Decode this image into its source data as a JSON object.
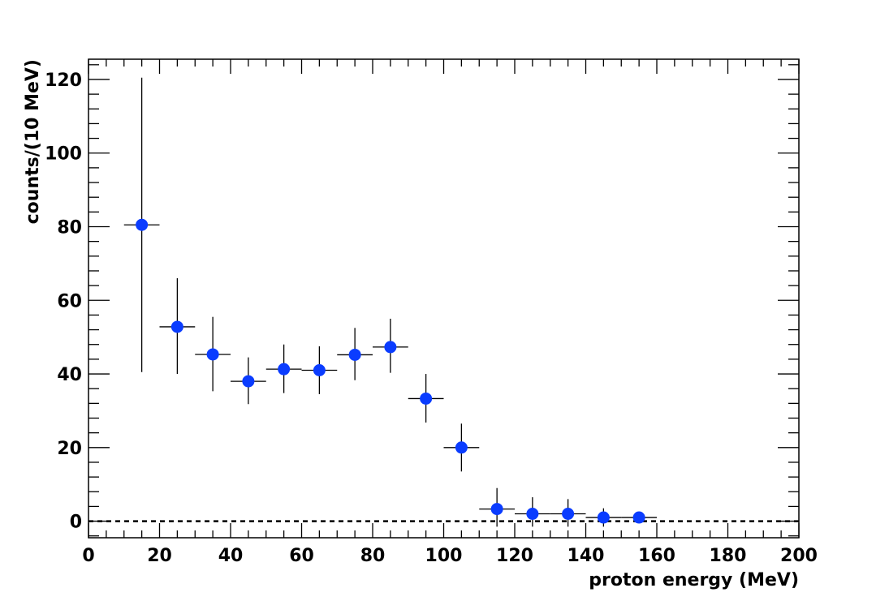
{
  "chart_data": {
    "type": "scatter",
    "xlabel": "proton energy (MeV)",
    "ylabel": "counts/(10 MeV)",
    "xlim": [
      0,
      200
    ],
    "ylim": [
      -4.5,
      125.5
    ],
    "x_ticks": [
      0,
      20,
      40,
      60,
      80,
      100,
      120,
      140,
      160,
      180,
      200
    ],
    "y_ticks": [
      0,
      20,
      40,
      60,
      80,
      100,
      120
    ],
    "grid": false,
    "marker_color": "#0a3cff",
    "zero_line": {
      "y": 0,
      "style": "dashed"
    },
    "series": [
      {
        "x": [
          15,
          25,
          35,
          45,
          55,
          65,
          75,
          85,
          95,
          105,
          115,
          125,
          135,
          145,
          155
        ],
        "y": [
          80.5,
          52.8,
          45.3,
          38.0,
          41.3,
          41.0,
          45.2,
          47.3,
          33.3,
          20.0,
          3.3,
          2.0,
          2.0,
          1.0,
          1.0
        ],
        "x_err": [
          5,
          5,
          5,
          5,
          5,
          5,
          5,
          5,
          5,
          5,
          5,
          5,
          5,
          5,
          5
        ],
        "y_lower": [
          40.5,
          40.0,
          35.3,
          31.8,
          34.8,
          34.5,
          38.3,
          40.3,
          26.8,
          13.5,
          -1.5,
          -1.5,
          -1.5,
          -1.5,
          -0.5
        ],
        "y_upper": [
          120.5,
          66.0,
          55.5,
          44.5,
          48.0,
          47.5,
          52.5,
          55.0,
          40.0,
          26.5,
          9.0,
          6.5,
          6.0,
          3.5,
          2.5
        ]
      }
    ]
  }
}
